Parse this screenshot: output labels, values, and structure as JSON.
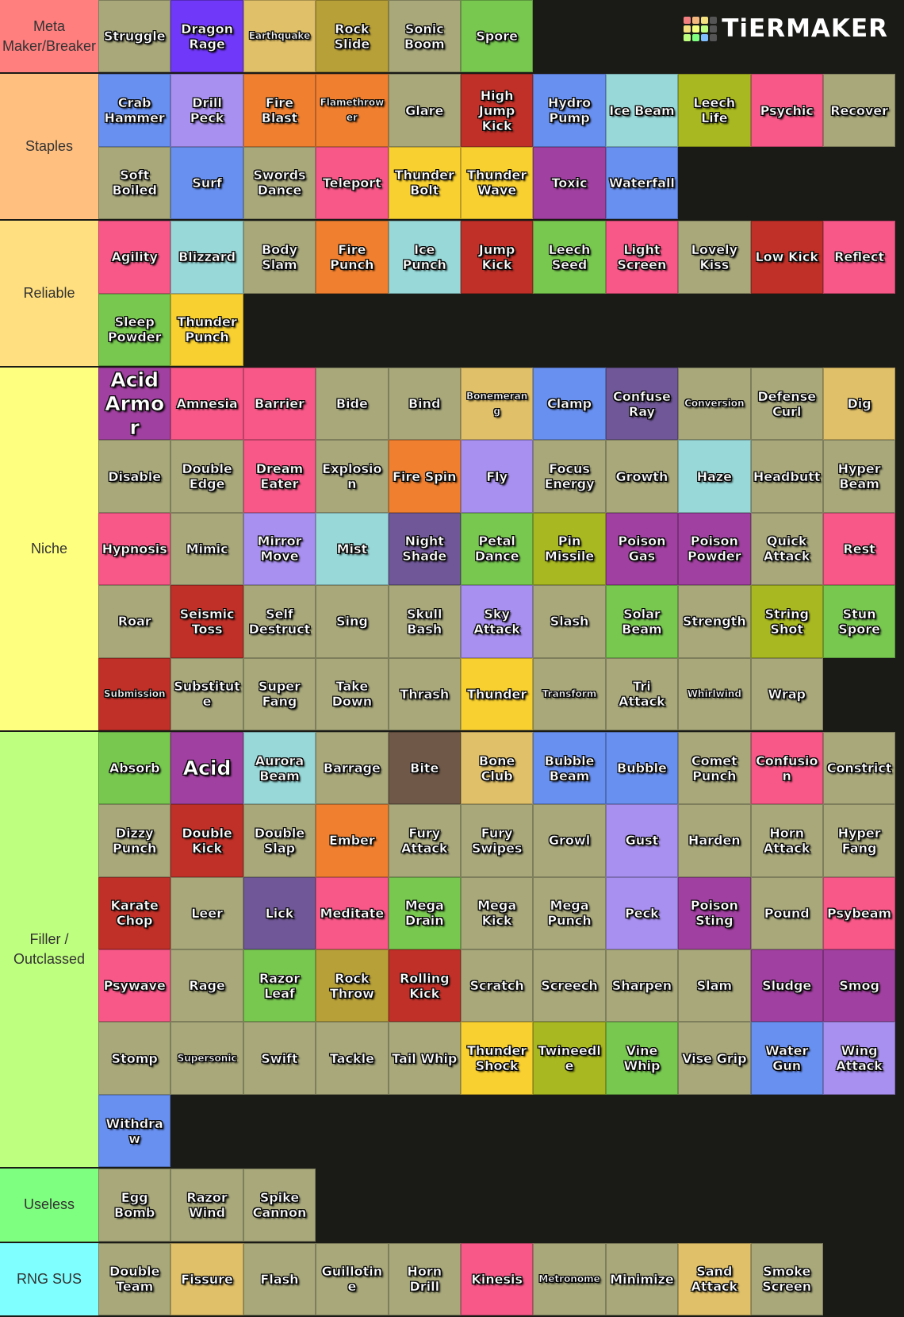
{
  "brand": {
    "logo_text": "TiERMAKER",
    "logo_colors": [
      "#f47f7f",
      "#f4b87f",
      "#f4e07f",
      "#555555",
      "#f4e07f",
      "#f4ff7f",
      "#bfff7f",
      "#555555",
      "#bfff7f",
      "#7fff7f",
      "#7fbfff",
      "#555555"
    ]
  },
  "colors": {
    "normal": "#a8a87b",
    "dragon": "#7038f8",
    "ground": "#e0c068",
    "rock": "#b8a038",
    "grass": "#78c850",
    "water": "#6890f0",
    "fire": "#f08030",
    "flying": "#a890f0",
    "fighting": "#c03028",
    "ice": "#98d8d8",
    "psychic": "#f85888",
    "electric": "#f8d030",
    "poison": "#a040a0",
    "ghost": "#705898",
    "bug": "#a8b820",
    "dark": "#705848"
  },
  "tiers": [
    {
      "label": "Meta Maker/Breaker",
      "color": "#ff7f7f",
      "items": [
        {
          "name": "Struggle",
          "type": "normal"
        },
        {
          "name": "Dragon Rage",
          "type": "dragon"
        },
        {
          "name": "Earthquake",
          "type": "ground",
          "size": "small"
        },
        {
          "name": "Rock Slide",
          "type": "rock"
        },
        {
          "name": "Sonic Boom",
          "type": "normal"
        },
        {
          "name": "Spore",
          "type": "grass"
        }
      ]
    },
    {
      "label": "Staples",
      "color": "#ffbf7f",
      "items": [
        {
          "name": "Crab Hammer",
          "type": "water"
        },
        {
          "name": "Drill Peck",
          "type": "flying"
        },
        {
          "name": "Fire Blast",
          "type": "fire"
        },
        {
          "name": "Flamethrower",
          "type": "fire",
          "size": "small"
        },
        {
          "name": "Glare",
          "type": "normal"
        },
        {
          "name": "High Jump Kick",
          "type": "fighting"
        },
        {
          "name": "Hydro Pump",
          "type": "water"
        },
        {
          "name": "Ice Beam",
          "type": "ice"
        },
        {
          "name": "Leech Life",
          "type": "bug"
        },
        {
          "name": "Psychic",
          "type": "psychic"
        },
        {
          "name": "Recover",
          "type": "normal"
        },
        {
          "name": "Soft Boiled",
          "type": "normal"
        },
        {
          "name": "Surf",
          "type": "water"
        },
        {
          "name": "Swords Dance",
          "type": "normal"
        },
        {
          "name": "Teleport",
          "type": "psychic"
        },
        {
          "name": "Thunder Bolt",
          "type": "electric"
        },
        {
          "name": "Thunder Wave",
          "type": "electric"
        },
        {
          "name": "Toxic",
          "type": "poison"
        },
        {
          "name": "Waterfall",
          "type": "water"
        }
      ]
    },
    {
      "label": "Reliable",
      "color": "#ffdf7f",
      "items": [
        {
          "name": "Agility",
          "type": "psychic"
        },
        {
          "name": "Blizzard",
          "type": "ice"
        },
        {
          "name": "Body Slam",
          "type": "normal"
        },
        {
          "name": "Fire Punch",
          "type": "fire"
        },
        {
          "name": "Ice Punch",
          "type": "ice"
        },
        {
          "name": "Jump Kick",
          "type": "fighting"
        },
        {
          "name": "Leech Seed",
          "type": "grass"
        },
        {
          "name": "Light Screen",
          "type": "psychic"
        },
        {
          "name": "Lovely Kiss",
          "type": "normal"
        },
        {
          "name": "Low Kick",
          "type": "fighting"
        },
        {
          "name": "Reflect",
          "type": "psychic"
        },
        {
          "name": "Sleep Powder",
          "type": "grass"
        },
        {
          "name": "Thunder Punch",
          "type": "electric"
        }
      ]
    },
    {
      "label": "Niche",
      "color": "#ffff7f",
      "items": [
        {
          "name": "Acid Armor",
          "type": "poison",
          "size": "big"
        },
        {
          "name": "Amnesia",
          "type": "psychic"
        },
        {
          "name": "Barrier",
          "type": "psychic"
        },
        {
          "name": "Bide",
          "type": "normal"
        },
        {
          "name": "Bind",
          "type": "normal"
        },
        {
          "name": "Bonemerang",
          "type": "ground",
          "size": "small"
        },
        {
          "name": "Clamp",
          "type": "water"
        },
        {
          "name": "Confuse Ray",
          "type": "ghost"
        },
        {
          "name": "Conversion",
          "type": "normal",
          "size": "small"
        },
        {
          "name": "Defense Curl",
          "type": "normal"
        },
        {
          "name": "Dig",
          "type": "ground"
        },
        {
          "name": "Disable",
          "type": "normal"
        },
        {
          "name": "Double Edge",
          "type": "normal"
        },
        {
          "name": "Dream Eater",
          "type": "psychic"
        },
        {
          "name": "Explosion",
          "type": "normal"
        },
        {
          "name": "Fire Spin",
          "type": "fire"
        },
        {
          "name": "Fly",
          "type": "flying"
        },
        {
          "name": "Focus Energy",
          "type": "normal"
        },
        {
          "name": "Growth",
          "type": "normal"
        },
        {
          "name": "Haze",
          "type": "ice"
        },
        {
          "name": "Headbutt",
          "type": "normal"
        },
        {
          "name": "Hyper Beam",
          "type": "normal"
        },
        {
          "name": "Hypnosis",
          "type": "psychic"
        },
        {
          "name": "Mimic",
          "type": "normal"
        },
        {
          "name": "Mirror Move",
          "type": "flying"
        },
        {
          "name": "Mist",
          "type": "ice"
        },
        {
          "name": "Night Shade",
          "type": "ghost"
        },
        {
          "name": "Petal Dance",
          "type": "grass"
        },
        {
          "name": "Pin Missile",
          "type": "bug"
        },
        {
          "name": "Poison Gas",
          "type": "poison"
        },
        {
          "name": "Poison Powder",
          "type": "poison"
        },
        {
          "name": "Quick Attack",
          "type": "normal"
        },
        {
          "name": "Rest",
          "type": "psychic"
        },
        {
          "name": "Roar",
          "type": "normal"
        },
        {
          "name": "Seismic Toss",
          "type": "fighting"
        },
        {
          "name": "Self Destruct",
          "type": "normal"
        },
        {
          "name": "Sing",
          "type": "normal"
        },
        {
          "name": "Skull Bash",
          "type": "normal"
        },
        {
          "name": "Sky Attack",
          "type": "flying"
        },
        {
          "name": "Slash",
          "type": "normal"
        },
        {
          "name": "Solar Beam",
          "type": "grass"
        },
        {
          "name": "Strength",
          "type": "normal"
        },
        {
          "name": "String Shot",
          "type": "bug"
        },
        {
          "name": "Stun Spore",
          "type": "grass"
        },
        {
          "name": "Submission",
          "type": "fighting",
          "size": "small"
        },
        {
          "name": "Substitute",
          "type": "normal"
        },
        {
          "name": "Super Fang",
          "type": "normal"
        },
        {
          "name": "Take Down",
          "type": "normal"
        },
        {
          "name": "Thrash",
          "type": "normal"
        },
        {
          "name": "Thunder",
          "type": "electric"
        },
        {
          "name": "Transform",
          "type": "normal",
          "size": "small"
        },
        {
          "name": "Tri Attack",
          "type": "normal"
        },
        {
          "name": "Whirlwind",
          "type": "normal",
          "size": "small"
        },
        {
          "name": "Wrap",
          "type": "normal"
        }
      ]
    },
    {
      "label": "Filler / Outclassed",
      "color": "#bfff7f",
      "items": [
        {
          "name": "Absorb",
          "type": "grass"
        },
        {
          "name": "Acid",
          "type": "poison",
          "size": "big"
        },
        {
          "name": "Aurora Beam",
          "type": "ice"
        },
        {
          "name": "Barrage",
          "type": "normal"
        },
        {
          "name": "Bite",
          "type": "dark"
        },
        {
          "name": "Bone Club",
          "type": "ground"
        },
        {
          "name": "Bubble Beam",
          "type": "water"
        },
        {
          "name": "Bubble",
          "type": "water"
        },
        {
          "name": "Comet Punch",
          "type": "normal"
        },
        {
          "name": "Confusion",
          "type": "psychic"
        },
        {
          "name": "Constrict",
          "type": "normal"
        },
        {
          "name": "Dizzy Punch",
          "type": "normal"
        },
        {
          "name": "Double Kick",
          "type": "fighting"
        },
        {
          "name": "Double Slap",
          "type": "normal"
        },
        {
          "name": "Ember",
          "type": "fire"
        },
        {
          "name": "Fury Attack",
          "type": "normal"
        },
        {
          "name": "Fury Swipes",
          "type": "normal"
        },
        {
          "name": "Growl",
          "type": "normal"
        },
        {
          "name": "Gust",
          "type": "flying"
        },
        {
          "name": "Harden",
          "type": "normal"
        },
        {
          "name": "Horn Attack",
          "type": "normal"
        },
        {
          "name": "Hyper Fang",
          "type": "normal"
        },
        {
          "name": "Karate Chop",
          "type": "fighting"
        },
        {
          "name": "Leer",
          "type": "normal"
        },
        {
          "name": "Lick",
          "type": "ghost"
        },
        {
          "name": "Meditate",
          "type": "psychic"
        },
        {
          "name": "Mega Drain",
          "type": "grass"
        },
        {
          "name": "Mega Kick",
          "type": "normal"
        },
        {
          "name": "Mega Punch",
          "type": "normal"
        },
        {
          "name": "Peck",
          "type": "flying"
        },
        {
          "name": "Poison Sting",
          "type": "poison"
        },
        {
          "name": "Pound",
          "type": "normal"
        },
        {
          "name": "Psybeam",
          "type": "psychic"
        },
        {
          "name": "Psywave",
          "type": "psychic"
        },
        {
          "name": "Rage",
          "type": "normal"
        },
        {
          "name": "Razor Leaf",
          "type": "grass"
        },
        {
          "name": "Rock Throw",
          "type": "rock"
        },
        {
          "name": "Rolling Kick",
          "type": "fighting"
        },
        {
          "name": "Scratch",
          "type": "normal"
        },
        {
          "name": "Screech",
          "type": "normal"
        },
        {
          "name": "Sharpen",
          "type": "normal"
        },
        {
          "name": "Slam",
          "type": "normal"
        },
        {
          "name": "Sludge",
          "type": "poison"
        },
        {
          "name": "Smog",
          "type": "poison"
        },
        {
          "name": "Stomp",
          "type": "normal"
        },
        {
          "name": "Supersonic",
          "type": "normal",
          "size": "small"
        },
        {
          "name": "Swift",
          "type": "normal"
        },
        {
          "name": "Tackle",
          "type": "normal"
        },
        {
          "name": "Tail Whip",
          "type": "normal"
        },
        {
          "name": "Thunder Shock",
          "type": "electric"
        },
        {
          "name": "Twineedle",
          "type": "bug"
        },
        {
          "name": "Vine Whip",
          "type": "grass"
        },
        {
          "name": "Vise Grip",
          "type": "normal"
        },
        {
          "name": "Water Gun",
          "type": "water"
        },
        {
          "name": "Wing Attack",
          "type": "flying"
        },
        {
          "name": "Withdraw",
          "type": "water"
        }
      ]
    },
    {
      "label": "Useless",
      "color": "#7fff7f",
      "items": [
        {
          "name": "Egg Bomb",
          "type": "normal"
        },
        {
          "name": "Razor Wind",
          "type": "normal"
        },
        {
          "name": "Spike Cannon",
          "type": "normal"
        }
      ]
    },
    {
      "label": "RNG SUS",
      "color": "#7fffff",
      "items": [
        {
          "name": "Double Team",
          "type": "normal"
        },
        {
          "name": "Fissure",
          "type": "ground"
        },
        {
          "name": "Flash",
          "type": "normal"
        },
        {
          "name": "Guillotine",
          "type": "normal"
        },
        {
          "name": "Horn Drill",
          "type": "normal"
        },
        {
          "name": "Kinesis",
          "type": "psychic"
        },
        {
          "name": "Metronome",
          "type": "normal",
          "size": "small"
        },
        {
          "name": "Minimize",
          "type": "normal"
        },
        {
          "name": "Sand Attack",
          "type": "ground"
        },
        {
          "name": "Smoke Screen",
          "type": "normal"
        }
      ]
    }
  ]
}
